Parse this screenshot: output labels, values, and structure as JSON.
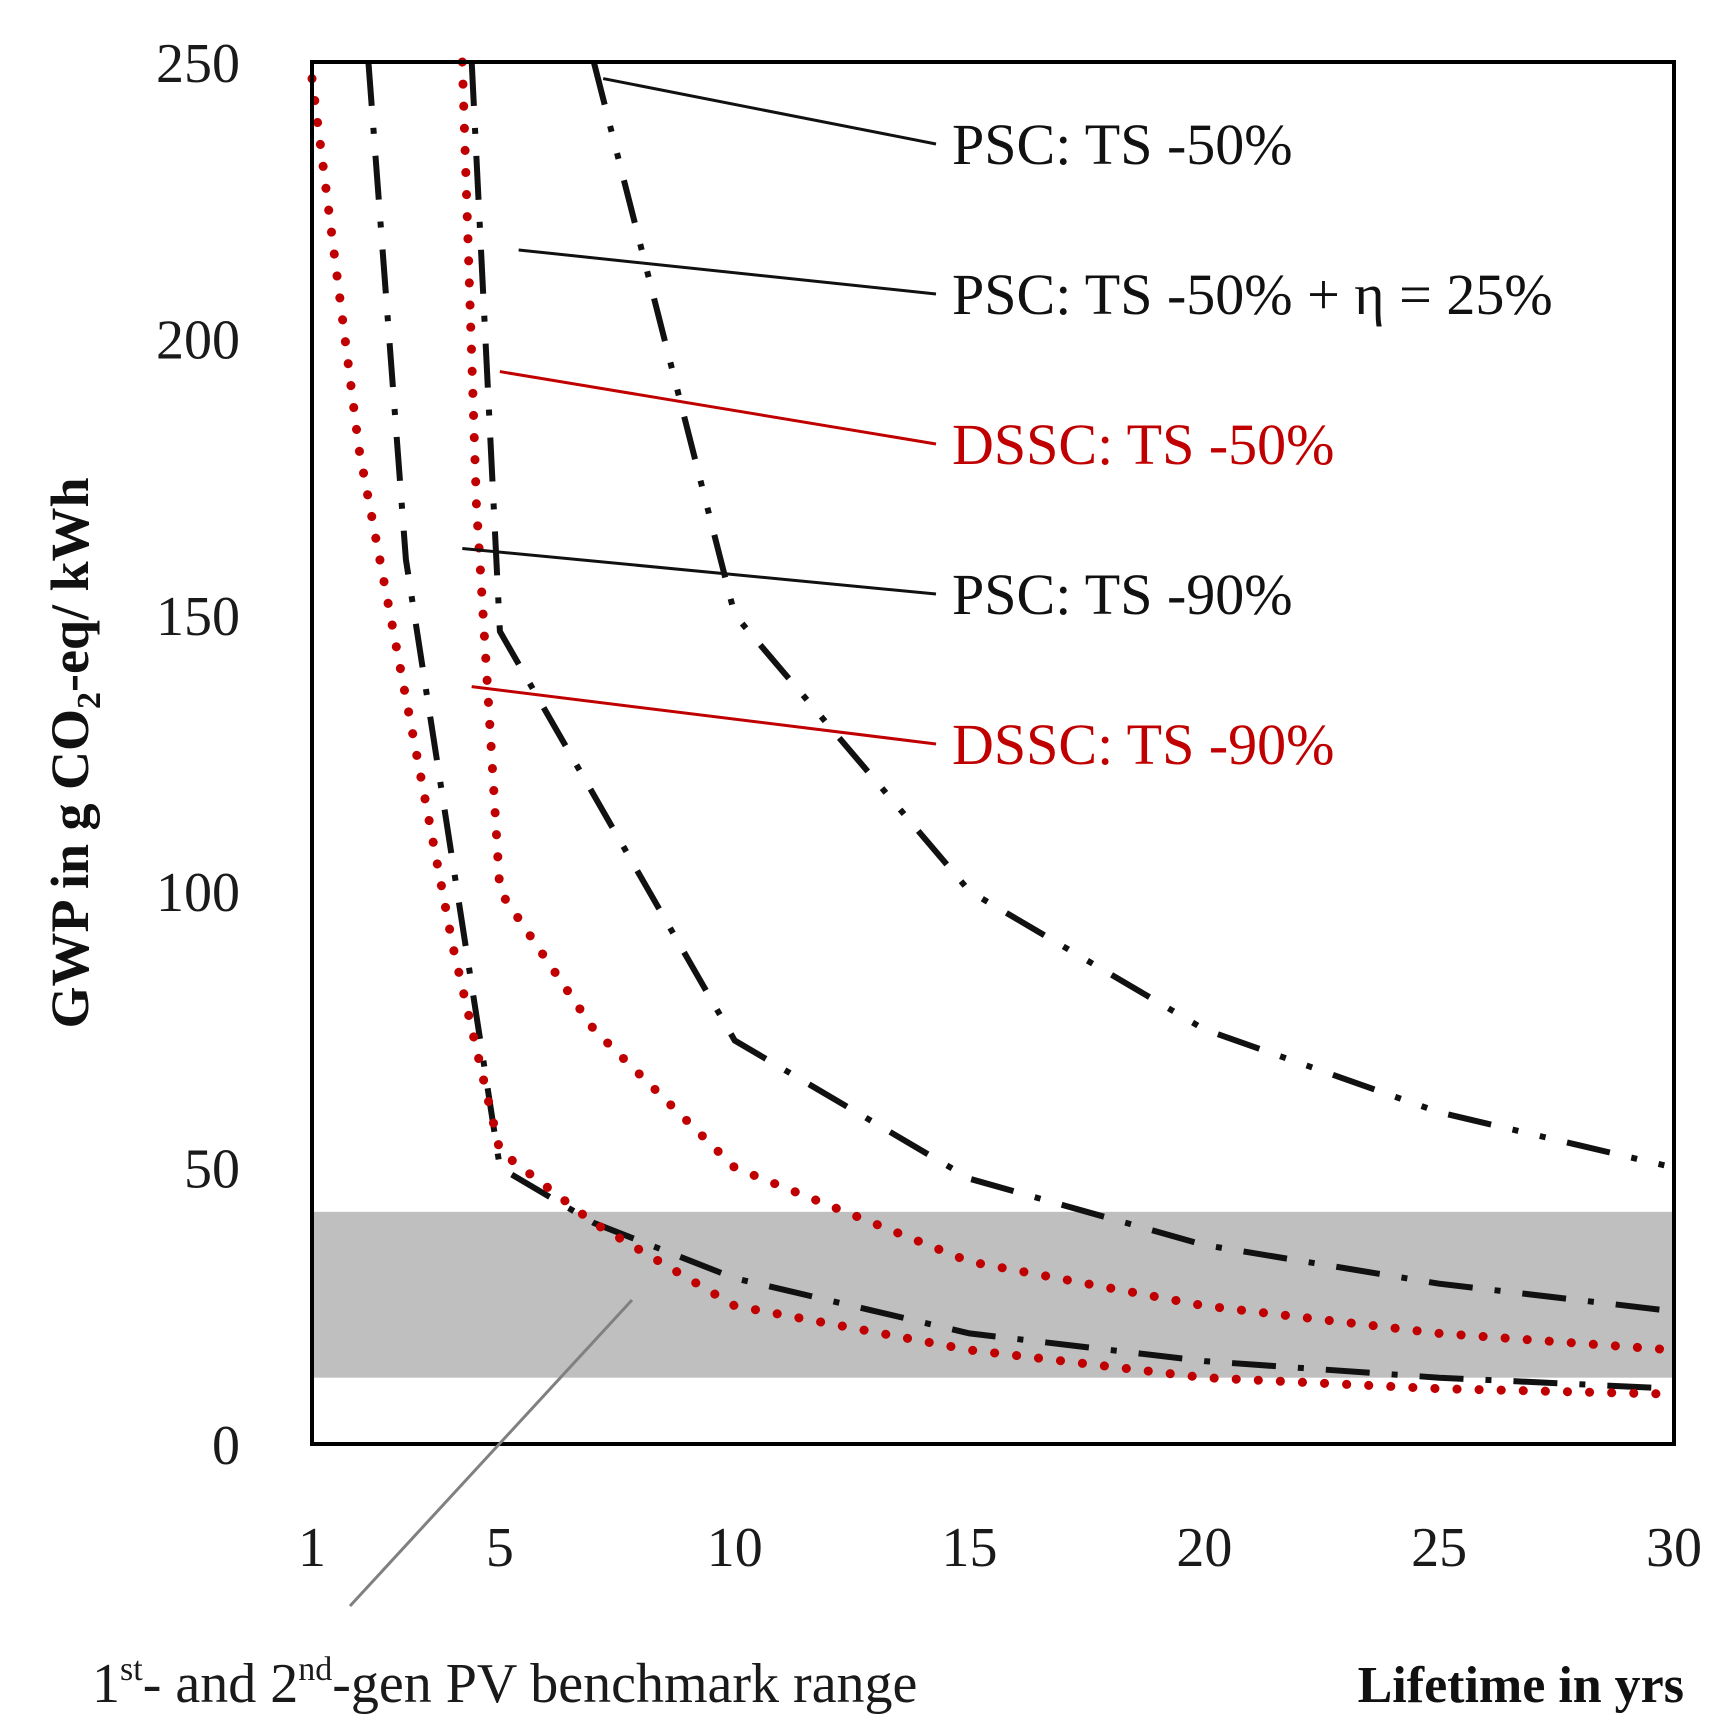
{
  "chart_data": {
    "type": "line",
    "title": "",
    "xlabel": "Lifetime in yrs",
    "ylabel_parts": [
      "GWP in g CO",
      "2",
      "-eq/ kWh"
    ],
    "xlim": [
      1,
      30
    ],
    "ylim": [
      0,
      250
    ],
    "x_ticks": [
      1,
      5,
      10,
      15,
      20,
      25,
      30
    ],
    "y_ticks": [
      0,
      50,
      100,
      150,
      200,
      250
    ],
    "grid": false,
    "colors": {
      "black": "#111111",
      "red": "#c00000",
      "band": "#bfbfbf",
      "pointer": "#808080"
    },
    "benchmark_range": {
      "y_min": 12,
      "y_max": 42,
      "label_parts": [
        "1",
        "st",
        "- and 2",
        "nd",
        "-gen PV benchmark range"
      ]
    },
    "series": [
      {
        "name": "PSC: TS -50%",
        "color": "black",
        "style": "dash-dot-dot",
        "x": [
          7,
          10,
          15,
          20,
          25,
          30
        ],
        "y": [
          250,
          150,
          100,
          75,
          60,
          50
        ]
      },
      {
        "name": "PSC: TS -50% + η = 25%",
        "color": "black",
        "style": "dash-dot",
        "x": [
          4.4,
          5,
          10,
          15,
          20,
          25,
          30
        ],
        "y": [
          250,
          147,
          73,
          48,
          36,
          29,
          24
        ]
      },
      {
        "name": "DSSC: TS -50%",
        "color": "red",
        "style": "dotted",
        "x": [
          4.2,
          4.5,
          5,
          7,
          10,
          15,
          20,
          25,
          30
        ],
        "y": [
          250,
          170,
          100,
          75,
          50,
          33,
          25,
          20,
          17
        ]
      },
      {
        "name": "PSC: TS -90%",
        "color": "black",
        "style": "dash-dot",
        "x": [
          2.2,
          3,
          5,
          7,
          10,
          15,
          20,
          25,
          30
        ],
        "y": [
          250,
          160,
          50,
          40,
          30,
          20,
          15,
          12,
          10
        ]
      },
      {
        "name": "DSSC: TS -90%",
        "color": "red",
        "style": "dotted",
        "x": [
          1,
          2,
          3,
          4,
          5,
          7,
          10,
          15,
          20,
          25,
          30
        ],
        "y": [
          247,
          180,
          135,
          90,
          53,
          40,
          25,
          17,
          12,
          10,
          9
        ]
      }
    ],
    "annotations": [
      {
        "text": "PSC: TS -50%",
        "color": "black",
        "point_x": 7.2,
        "point_y": 247
      },
      {
        "text": "PSC: TS -50% + η = 25%",
        "color": "black",
        "point_x": 5.4,
        "point_y": 216
      },
      {
        "text": "DSSC: TS -50%",
        "color": "red",
        "point_x": 5.0,
        "point_y": 194
      },
      {
        "text": "PSC: TS -90%",
        "color": "black",
        "point_x": 4.2,
        "point_y": 162
      },
      {
        "text": "DSSC: TS -90%",
        "color": "red",
        "point_x": 4.4,
        "point_y": 137
      }
    ]
  }
}
